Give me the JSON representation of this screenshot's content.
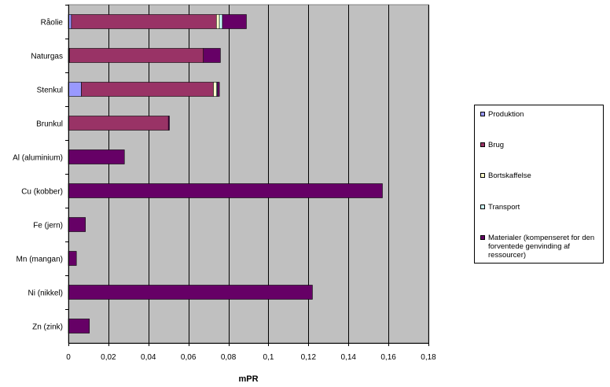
{
  "chart_data": {
    "type": "bar",
    "orientation": "horizontal",
    "stacked": true,
    "categories": [
      "Råolie",
      "Naturgas",
      "Stenkul",
      "Brunkul",
      "Al (aluminium)",
      "Cu (kobber)",
      "Fe (jern)",
      "Mn (mangan)",
      "Ni (nikkel)",
      "Zn (zink)"
    ],
    "series": [
      {
        "name": "Produktion",
        "color": "#9999ff",
        "values": [
          0.0015,
          0.0005,
          0.0065,
          0,
          0,
          0,
          0,
          0,
          0,
          0
        ]
      },
      {
        "name": "Brug",
        "color": "#993366",
        "values": [
          0.0725,
          0.067,
          0.066,
          0.05,
          0,
          0,
          0,
          0,
          0,
          0
        ]
      },
      {
        "name": "Bortskaffelse",
        "color": "#ffffcc",
        "values": [
          0.0015,
          0,
          0.0015,
          0,
          0,
          0,
          0,
          0,
          0,
          0
        ]
      },
      {
        "name": "Transport",
        "color": "#ccffff",
        "values": [
          0.0015,
          0,
          0.0005,
          0,
          0,
          0,
          0,
          0,
          0,
          0
        ]
      },
      {
        "name": "Materialer (kompenseret for den forventede genvinding af ressourcer)",
        "color": "#660066",
        "values": [
          0.012,
          0.0085,
          0.001,
          0.0005,
          0.028,
          0.157,
          0.0085,
          0.004,
          0.122,
          0.0105
        ]
      }
    ],
    "xlabel": "mPR",
    "ylabel": "",
    "xlim": [
      0,
      0.18
    ],
    "xticks": [
      0,
      0.02,
      0.04,
      0.06,
      0.08,
      0.1,
      0.12,
      0.14,
      0.16,
      0.18
    ],
    "xtick_labels": [
      "0",
      "0,02",
      "0,04",
      "0,06",
      "0,08",
      "0,1",
      "0,12",
      "0,14",
      "0,16",
      "0,18"
    ],
    "grid": "vertical",
    "plot_background": "#c0c0c0",
    "legend_position": "right"
  }
}
